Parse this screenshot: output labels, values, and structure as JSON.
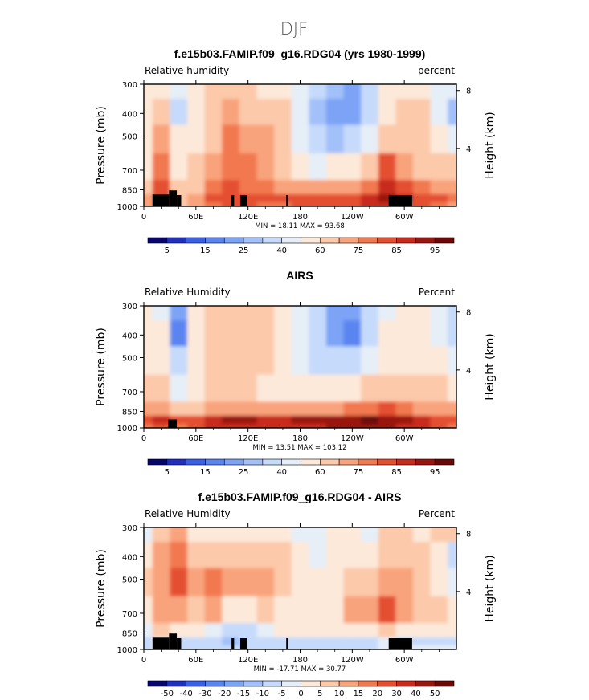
{
  "figure_title": "DJF",
  "chart_data": [
    {
      "type": "heatmap",
      "title": "f.e15b03.FAMIP.f09_g16.RDG04 (yrs 1980-1999)",
      "variable_label": "Relative humidity",
      "units_label": "percent",
      "ylabel": "Pressure (mb)",
      "y2label": "Height (km)",
      "x_ticks": [
        "0",
        "60E",
        "120E",
        "180",
        "120W",
        "60W"
      ],
      "y_ticks": [
        "300",
        "400",
        "500",
        "700",
        "850",
        "1000"
      ],
      "y2_ticks": [
        "8",
        "4"
      ],
      "stats_text": "MIN =   18.11   MAX =   93.68",
      "min": 18.11,
      "max": 93.68,
      "colorbar_levels": [
        5,
        10,
        15,
        20,
        25,
        30,
        40,
        50,
        60,
        70,
        75,
        80,
        85,
        90,
        95
      ],
      "colorbar_labels": [
        "5",
        "15",
        "25",
        "40",
        "60",
        "75",
        "85",
        "95"
      ],
      "colorbar_colors": [
        "#06066d",
        "#1f2fc0",
        "#3b60e8",
        "#5a85f0",
        "#7ca3f6",
        "#a2c0fa",
        "#c6dafb",
        "#e6eef8",
        "#fde9da",
        "#fcc9aa",
        "#f9a37c",
        "#f27850",
        "#e44f30",
        "#c82a1c",
        "#9a1410",
        "#6b0707"
      ],
      "zonal_means": {
        "lon": [
          0,
          20,
          40,
          60,
          80,
          100,
          120,
          140,
          160,
          180,
          200,
          220,
          240,
          260,
          280,
          300,
          320,
          340,
          360
        ],
        "p": [
          300,
          400,
          500,
          700,
          850,
          925,
          1000
        ],
        "rh": [
          [
            50,
            55,
            45,
            54,
            62,
            62,
            60,
            58,
            54,
            40,
            30,
            25,
            22,
            30,
            52,
            56,
            55,
            45,
            40
          ],
          [
            52,
            62,
            35,
            52,
            64,
            70,
            68,
            68,
            60,
            40,
            25,
            20,
            20,
            32,
            58,
            62,
            60,
            45,
            28
          ],
          [
            55,
            70,
            50,
            55,
            68,
            75,
            74,
            72,
            62,
            45,
            30,
            28,
            30,
            40,
            68,
            65,
            62,
            50,
            40
          ],
          [
            58,
            75,
            55,
            60,
            70,
            78,
            76,
            72,
            65,
            55,
            48,
            50,
            56,
            64,
            80,
            72,
            68,
            64,
            60
          ],
          [
            66,
            82,
            64,
            68,
            76,
            80,
            78,
            76,
            74,
            72,
            70,
            72,
            74,
            78,
            86,
            82,
            78,
            74,
            70
          ],
          [
            72,
            84,
            68,
            74,
            80,
            82,
            82,
            80,
            80,
            80,
            80,
            82,
            84,
            86,
            90,
            86,
            84,
            80,
            76
          ],
          [
            70,
            80,
            60,
            72,
            78,
            80,
            80,
            78,
            78,
            80,
            80,
            82,
            84,
            86,
            88,
            84,
            82,
            78,
            74
          ]
        ]
      }
    },
    {
      "type": "heatmap",
      "title": "AIRS",
      "variable_label": "Relative Humidity",
      "units_label": "Percent",
      "ylabel": "Pressure (mb)",
      "y2label": "Height (km)",
      "x_ticks": [
        "0",
        "60E",
        "120E",
        "180",
        "120W",
        "60W"
      ],
      "y_ticks": [
        "300",
        "400",
        "500",
        "700",
        "850",
        "1000"
      ],
      "y2_ticks": [
        "8",
        "4"
      ],
      "stats_text": "MIN =   13.51   MAX =  103.12",
      "min": 13.51,
      "max": 103.12,
      "colorbar_levels": [
        5,
        10,
        15,
        20,
        25,
        30,
        40,
        50,
        60,
        70,
        75,
        80,
        85,
        90,
        95
      ],
      "colorbar_labels": [
        "5",
        "15",
        "25",
        "40",
        "60",
        "75",
        "85",
        "95"
      ],
      "colorbar_colors": [
        "#06066d",
        "#1f2fc0",
        "#3b60e8",
        "#5a85f0",
        "#7ca3f6",
        "#a2c0fa",
        "#c6dafb",
        "#e6eef8",
        "#fde9da",
        "#fcc9aa",
        "#f9a37c",
        "#f27850",
        "#e44f30",
        "#c82a1c",
        "#9a1410",
        "#6b0707"
      ],
      "zonal_means": {
        "lon": [
          0,
          20,
          40,
          60,
          80,
          100,
          120,
          140,
          160,
          180,
          200,
          220,
          240,
          260,
          280,
          300,
          320,
          340,
          360
        ],
        "p": [
          300,
          400,
          500,
          700,
          850,
          925,
          1000
        ],
        "rh": [
          [
            52,
            48,
            20,
            52,
            60,
            64,
            62,
            60,
            56,
            44,
            34,
            24,
            20,
            35,
            48,
            52,
            50,
            40,
            32
          ],
          [
            54,
            50,
            18,
            50,
            62,
            66,
            62,
            62,
            56,
            42,
            30,
            20,
            16,
            32,
            52,
            56,
            54,
            46,
            36
          ],
          [
            58,
            56,
            30,
            54,
            62,
            64,
            60,
            60,
            56,
            45,
            34,
            30,
            30,
            40,
            56,
            58,
            58,
            52,
            46
          ],
          [
            62,
            62,
            48,
            56,
            62,
            62,
            60,
            58,
            58,
            54,
            50,
            52,
            56,
            64,
            66,
            62,
            62,
            60,
            58
          ],
          [
            70,
            72,
            62,
            66,
            72,
            74,
            74,
            72,
            72,
            72,
            72,
            74,
            76,
            78,
            80,
            76,
            74,
            72,
            70
          ],
          [
            80,
            86,
            80,
            84,
            88,
            90,
            90,
            88,
            88,
            90,
            90,
            92,
            94,
            96,
            94,
            90,
            88,
            84,
            80
          ],
          [
            78,
            84,
            78,
            82,
            86,
            88,
            88,
            86,
            86,
            88,
            88,
            90,
            92,
            94,
            92,
            88,
            86,
            82,
            78
          ]
        ]
      }
    },
    {
      "type": "heatmap",
      "title": "f.e15b03.FAMIP.f09_g16.RDG04 - AIRS",
      "variable_label": "Relative Humidity",
      "units_label": "Percent",
      "ylabel": "Pressure (mb)",
      "y2label": "Height (km)",
      "x_ticks": [
        "0",
        "60E",
        "120E",
        "180",
        "120W",
        "60W"
      ],
      "y_ticks": [
        "300",
        "400",
        "500",
        "700",
        "850",
        "1000"
      ],
      "y2_ticks": [
        "8",
        "4"
      ],
      "stats_text": "MIN =  -17.71   MAX =   30.77",
      "min": -17.71,
      "max": 30.77,
      "colorbar_levels": [
        -50,
        -40,
        -30,
        -20,
        -15,
        -10,
        -5,
        0,
        5,
        10,
        15,
        20,
        30,
        40,
        50
      ],
      "colorbar_labels": [
        "-50",
        "-40",
        "-30",
        "-20",
        "-15",
        "-10",
        "-5",
        "0",
        "5",
        "10",
        "15",
        "20",
        "30",
        "40",
        "50"
      ],
      "colorbar_colors": [
        "#06066d",
        "#1f2fc0",
        "#3b60e8",
        "#5a85f0",
        "#7ca3f6",
        "#a2c0fa",
        "#c6dafb",
        "#e6eef8",
        "#fde9da",
        "#fcc9aa",
        "#f9a37c",
        "#f27850",
        "#e44f30",
        "#c82a1c",
        "#9a1410",
        "#6b0707"
      ],
      "zonal_means": {
        "lon": [
          0,
          20,
          40,
          60,
          80,
          100,
          120,
          140,
          160,
          180,
          200,
          220,
          240,
          260,
          280,
          300,
          320,
          340,
          360
        ],
        "p": [
          300,
          400,
          500,
          700,
          850,
          925,
          1000
        ],
        "rh": [
          [
            -2,
            6,
            12,
            4,
            4,
            0,
            2,
            0,
            0,
            -2,
            -4,
            2,
            2,
            -2,
            6,
            6,
            4,
            6,
            6
          ],
          [
            2,
            10,
            16,
            8,
            8,
            6,
            8,
            6,
            6,
            0,
            -4,
            0,
            2,
            0,
            8,
            8,
            6,
            2,
            -6
          ],
          [
            6,
            14,
            20,
            14,
            16,
            12,
            14,
            12,
            8,
            2,
            0,
            2,
            6,
            8,
            14,
            10,
            6,
            4,
            -2
          ],
          [
            4,
            12,
            10,
            6,
            10,
            4,
            2,
            6,
            4,
            2,
            2,
            4,
            10,
            14,
            20,
            12,
            8,
            6,
            2
          ],
          [
            -4,
            8,
            4,
            2,
            -2,
            -6,
            -6,
            -2,
            0,
            0,
            0,
            2,
            2,
            4,
            8,
            4,
            2,
            0,
            0
          ],
          [
            -8,
            -4,
            -10,
            -6,
            -10,
            -12,
            -10,
            -8,
            -8,
            -10,
            -10,
            -10,
            -10,
            -10,
            -4,
            -6,
            -6,
            -6,
            -6
          ],
          [
            -6,
            -2,
            -8,
            -6,
            -8,
            -8,
            -8,
            -8,
            -8,
            -8,
            -8,
            -8,
            -8,
            -8,
            -4,
            -4,
            -4,
            -4,
            -4
          ]
        ]
      }
    }
  ]
}
